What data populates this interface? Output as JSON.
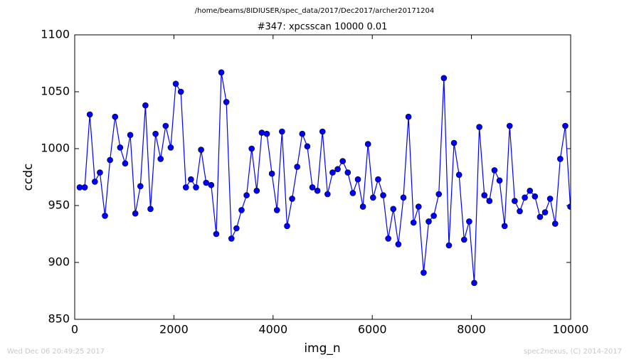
{
  "chart_data": {
    "type": "line",
    "suptitle": "/home/beams/8IDIUSER/spec_data/2017/Dec2017/archer20171204",
    "title": "#347: xpcsscan 10000 0.01",
    "x_label": "img_n",
    "y_label": "ccdc",
    "annotations": [
      "Wed Dec 06 20:49:25 2017",
      "spec2nexus, (C) 2014-2017"
    ],
    "x": [
      100,
      202,
      304,
      406,
      508,
      610,
      712,
      814,
      916,
      1018,
      1120,
      1222,
      1324,
      1426,
      1528,
      1630,
      1732,
      1834,
      1936,
      2038,
      2140,
      2242,
      2344,
      2446,
      2548,
      2650,
      2752,
      2854,
      2956,
      3058,
      3160,
      3262,
      3364,
      3466,
      3568,
      3670,
      3772,
      3874,
      3976,
      4078,
      4180,
      4282,
      4384,
      4486,
      4588,
      4690,
      4792,
      4894,
      4996,
      5098,
      5200,
      5302,
      5404,
      5506,
      5608,
      5710,
      5812,
      5914,
      6016,
      6118,
      6220,
      6322,
      6424,
      6526,
      6628,
      6730,
      6832,
      6934,
      7036,
      7138,
      7240,
      7342,
      7444,
      7546,
      7648,
      7750,
      7852,
      7954,
      8056,
      8158,
      8260,
      8362,
      8464,
      8566,
      8668,
      8770,
      8872,
      8974,
      9076,
      9178,
      9280,
      9382,
      9484,
      9586,
      9688,
      9790,
      9892,
      9994
    ],
    "series": [
      {
        "name": "ccdc",
        "color": "#0000ff",
        "values": [
          966,
          966,
          1030,
          971,
          979,
          941,
          990,
          1028,
          1001,
          987,
          1012,
          943,
          967,
          1038,
          947,
          1013,
          991,
          1020,
          1001,
          1057,
          1050,
          966,
          973,
          966,
          999,
          970,
          968,
          925,
          1067,
          1041,
          921,
          930,
          946,
          959,
          1000,
          963,
          1014,
          1013,
          978,
          946,
          1015,
          932,
          956,
          984,
          1013,
          1002,
          966,
          963,
          1015,
          960,
          979,
          982,
          989,
          979,
          961,
          973,
          949,
          1004,
          957,
          973,
          959,
          921,
          947,
          916,
          957,
          1028,
          935,
          949,
          891,
          936,
          941,
          960,
          1062,
          915,
          1005,
          977,
          920,
          936,
          882,
          1019,
          959,
          954,
          981,
          972,
          932,
          1020,
          954,
          945,
          957,
          963,
          958,
          940,
          944,
          956,
          934,
          991,
          1020,
          949
        ]
      }
    ],
    "xlim": [
      0,
      10000
    ],
    "xticks": [
      0,
      2000,
      4000,
      6000,
      8000,
      10000
    ],
    "ylim": [
      850,
      1100
    ],
    "yticks": [
      850,
      900,
      950,
      1000,
      1050,
      1100
    ],
    "grid": false
  }
}
